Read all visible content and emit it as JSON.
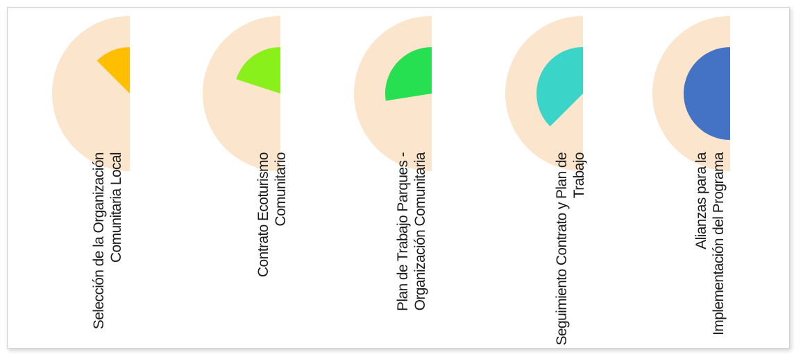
{
  "colors": {
    "background_disc": "#fbe5cc",
    "frame_border": "#d2d2d2",
    "label_text": "#1a1a1a"
  },
  "stages": [
    {
      "label": "Selección de la Organización Comunitaria Local",
      "fill_color": "#ffbf00",
      "progress": 0.25
    },
    {
      "label": "Contrato Ecoturismo Comunitario",
      "fill_color": "#8af01b",
      "progress": 0.4
    },
    {
      "label": "Plan de Trabajo Parques - Organización Comunitaria",
      "fill_color": "#27e052",
      "progress": 0.55
    },
    {
      "label": "Seguimiento Contrato y Plan de Trabajo",
      "fill_color": "#3ad4c8",
      "progress": 0.75
    },
    {
      "label": "Alianzas para la Implementación del Programa",
      "fill_color": "#4472c4",
      "progress": 1.0
    }
  ]
}
